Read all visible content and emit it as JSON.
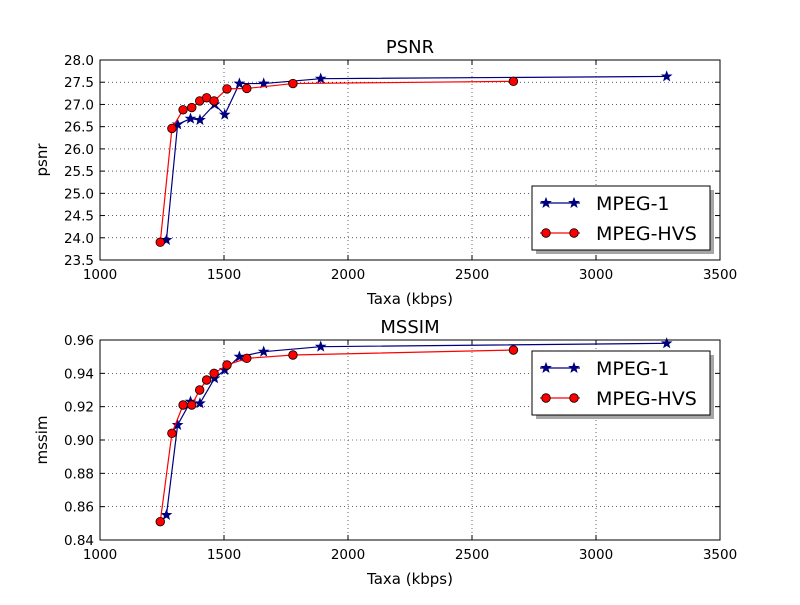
{
  "chart_data": [
    {
      "type": "line",
      "title": "PSNR",
      "xlabel": "Taxa (kbps)",
      "ylabel": "psnr",
      "xlim": [
        1000,
        3500
      ],
      "ylim": [
        23.5,
        28.0
      ],
      "xticks": [
        "1000",
        "1500",
        "2000",
        "2500",
        "3000",
        "3500"
      ],
      "yticks": [
        "23.5",
        "24.0",
        "24.5",
        "25.0",
        "25.5",
        "26.0",
        "26.5",
        "27.0",
        "27.5",
        "28.0"
      ],
      "grid": true,
      "legend_position": "lower-right",
      "series": [
        {
          "name": "MPEG-1",
          "color": "#00007f",
          "marker": "star",
          "x": [
            1268,
            1313,
            1365,
            1403,
            1462,
            1503,
            1562,
            1660,
            1890,
            3285
          ],
          "y": [
            23.95,
            26.55,
            26.68,
            26.65,
            27.0,
            26.77,
            27.47,
            27.47,
            27.58,
            27.63
          ]
        },
        {
          "name": "MPEG-HVS",
          "color": "#ff0000",
          "marker": "circle",
          "x": [
            1243,
            1290,
            1335,
            1370,
            1402,
            1430,
            1460,
            1512,
            1592,
            1778,
            2667
          ],
          "y": [
            23.9,
            26.46,
            26.88,
            26.93,
            27.08,
            27.15,
            27.08,
            27.35,
            27.36,
            27.47,
            27.52
          ]
        }
      ]
    },
    {
      "type": "line",
      "title": "MSSIM",
      "xlabel": "Taxa (kbps)",
      "ylabel": "mssim",
      "xlim": [
        1000,
        3500
      ],
      "ylim": [
        0.84,
        0.96
      ],
      "xticks": [
        "1000",
        "1500",
        "2000",
        "2500",
        "3000",
        "3500"
      ],
      "yticks": [
        "0.84",
        "0.86",
        "0.88",
        "0.90",
        "0.92",
        "0.94",
        "0.96"
      ],
      "grid": true,
      "legend_position": "upper-right",
      "series": [
        {
          "name": "MPEG-1",
          "color": "#00007f",
          "marker": "star",
          "x": [
            1268,
            1313,
            1365,
            1403,
            1462,
            1503,
            1562,
            1660,
            1890,
            3285
          ],
          "y": [
            0.855,
            0.909,
            0.923,
            0.922,
            0.937,
            0.942,
            0.95,
            0.953,
            0.956,
            0.958
          ]
        },
        {
          "name": "MPEG-HVS",
          "color": "#ff0000",
          "marker": "circle",
          "x": [
            1243,
            1290,
            1335,
            1370,
            1402,
            1430,
            1460,
            1512,
            1592,
            1778,
            2667
          ],
          "y": [
            0.851,
            0.904,
            0.921,
            0.921,
            0.93,
            0.936,
            0.94,
            0.945,
            0.949,
            0.951,
            0.954
          ]
        }
      ]
    }
  ]
}
